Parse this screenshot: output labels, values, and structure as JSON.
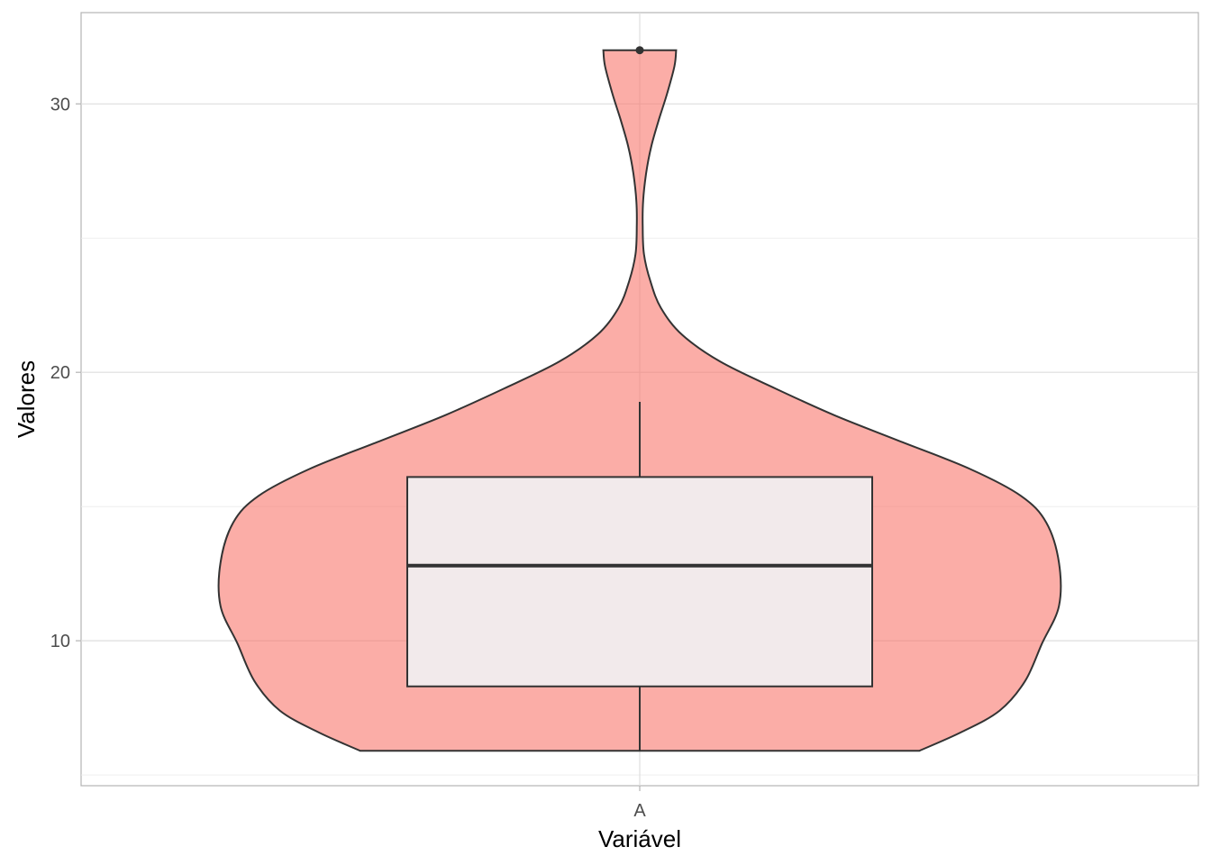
{
  "chart_data": {
    "type": "violin",
    "xlabel": "Variável",
    "ylabel": "Valores",
    "categories": [
      "A"
    ],
    "ylim": [
      4.6,
      33.4
    ],
    "yticks": [
      10,
      20,
      30
    ],
    "grid": true,
    "violin": {
      "fill": "#f8766d",
      "fill_opacity": 0.6,
      "outline": "#333333",
      "min": 5.9,
      "max": 32.0,
      "density_profile": [
        {
          "y": 5.9,
          "half_width": 0.66
        },
        {
          "y": 6.6,
          "half_width": 0.76
        },
        {
          "y": 7.4,
          "half_width": 0.85
        },
        {
          "y": 8.5,
          "half_width": 0.91
        },
        {
          "y": 9.9,
          "half_width": 0.95
        },
        {
          "y": 11.3,
          "half_width": 0.99
        },
        {
          "y": 12.9,
          "half_width": 0.99
        },
        {
          "y": 14.4,
          "half_width": 0.96
        },
        {
          "y": 15.4,
          "half_width": 0.9
        },
        {
          "y": 16.4,
          "half_width": 0.78
        },
        {
          "y": 17.4,
          "half_width": 0.62
        },
        {
          "y": 18.4,
          "half_width": 0.46
        },
        {
          "y": 19.4,
          "half_width": 0.32
        },
        {
          "y": 20.4,
          "half_width": 0.19
        },
        {
          "y": 21.4,
          "half_width": 0.1
        },
        {
          "y": 22.4,
          "half_width": 0.05
        },
        {
          "y": 23.4,
          "half_width": 0.025
        },
        {
          "y": 24.4,
          "half_width": 0.01
        },
        {
          "y": 25.4,
          "half_width": 0.007
        },
        {
          "y": 26.4,
          "half_width": 0.008
        },
        {
          "y": 27.4,
          "half_width": 0.015
        },
        {
          "y": 28.4,
          "half_width": 0.027
        },
        {
          "y": 29.4,
          "half_width": 0.045
        },
        {
          "y": 30.4,
          "half_width": 0.065
        },
        {
          "y": 31.4,
          "half_width": 0.082
        },
        {
          "y": 32.0,
          "half_width": 0.086
        }
      ]
    },
    "boxplot": {
      "fill": "#f2eaeb",
      "outline": "#333333",
      "whisker_low": 5.9,
      "q1": 8.3,
      "median": 12.8,
      "q3": 16.1,
      "whisker_high": 18.9,
      "outliers": [
        32.0
      ]
    }
  }
}
